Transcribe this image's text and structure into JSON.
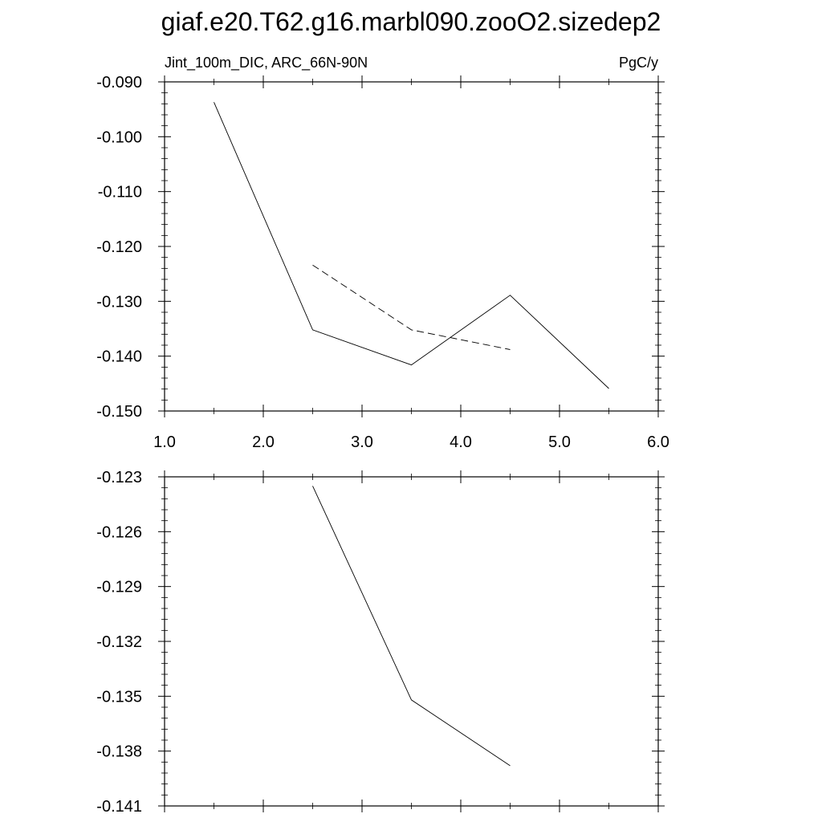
{
  "title": "giaf.e20.T62.g16.marbl090.zooO2.sizedep2",
  "colors": {
    "background": "#ffffff",
    "lines": "#000000"
  },
  "chart_data": [
    {
      "type": "line",
      "left_label": "Jint_100m_DIC, ARC_66N-90N",
      "right_label": "PgC/y",
      "xlim": [
        1.0,
        6.0
      ],
      "ylim": [
        -0.15,
        -0.09
      ],
      "xticks": [
        "1.0",
        "2.0",
        "3.0",
        "4.0",
        "5.0",
        "6.0"
      ],
      "yticks": [
        "-0.090",
        "-0.100",
        "-0.110",
        "-0.120",
        "-0.130",
        "-0.140",
        "-0.150"
      ],
      "grid": false,
      "series": [
        {
          "style": "solid",
          "x": [
            1.5,
            2.5,
            3.5,
            4.5,
            5.5
          ],
          "y": [
            -0.0937,
            -0.1352,
            -0.1416,
            -0.1289,
            -0.1459
          ]
        },
        {
          "style": "dashed",
          "x": [
            2.5,
            3.5,
            4.5
          ],
          "y": [
            -0.1234,
            -0.1352,
            -0.1388
          ]
        }
      ]
    },
    {
      "type": "line",
      "xlim": [
        1.0,
        6.0
      ],
      "ylim": [
        -0.141,
        -0.123
      ],
      "xticks": [
        "",
        "",
        "",
        "",
        "",
        ""
      ],
      "yticks": [
        "-0.123",
        "-0.126",
        "-0.129",
        "-0.132",
        "-0.135",
        "-0.138",
        "-0.141"
      ],
      "grid": false,
      "series": [
        {
          "style": "solid",
          "x": [
            2.5,
            3.5,
            4.5
          ],
          "y": [
            -0.1235,
            -0.1352,
            -0.1388
          ]
        }
      ]
    }
  ]
}
